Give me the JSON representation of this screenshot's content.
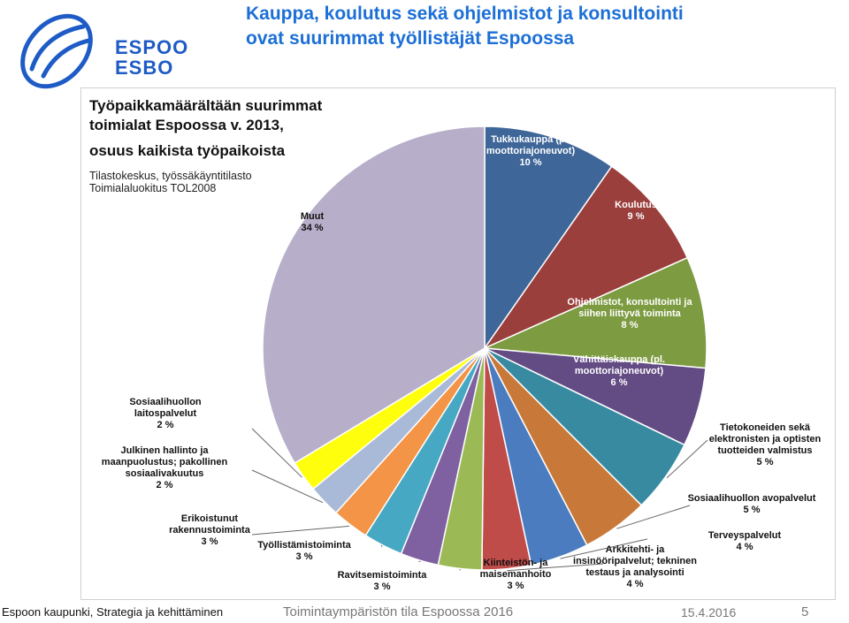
{
  "logo": {
    "line1": "ESPOO",
    "line2": "ESBO"
  },
  "title": {
    "line1": "Kauppa, koulutus sekä ohjelmistot ja konsultointi",
    "line2": "ovat suurimmat työllistäjät Espoossa"
  },
  "chart_heading": {
    "line1": "Työpaikkamäärältään suurimmat",
    "line2": "toimialat Espoossa v. 2013,",
    "line3": "osuus kaikista työpaikoista"
  },
  "chart_source": {
    "line1": "Tilastokeskus, työssäkäyntitilasto",
    "line2": "Toimialaluokitus  TOL2008"
  },
  "chart_data": {
    "type": "pie",
    "title": "Työpaikkamäärältään suurimmat toimialat Espoossa v. 2013, osuus kaikista työpaikoista",
    "unit": "%",
    "slices": [
      {
        "lines": [
          "Tukkukauppa (pl.",
          "moottoriajoneuvot)"
        ],
        "value_label": "10 %",
        "value": 9.8,
        "color": "#3f6698"
      },
      {
        "lines": [
          "Koulutus"
        ],
        "value_label": "9 %",
        "value": 8.7,
        "color": "#9b3f3d"
      },
      {
        "lines": [
          "Ohjelmistot, konsultointi ja",
          "siihen liittyvä toiminta"
        ],
        "value_label": "8 %",
        "value": 8.2,
        "color": "#7d9b41"
      },
      {
        "lines": [
          "Vähittäiskauppa (pl.",
          "moottoriajoneuvot)"
        ],
        "value_label": "6 %",
        "value": 5.8,
        "color": "#634b84"
      },
      {
        "lines": [
          "Tietokoneiden sekä",
          "elektronisten ja optisten",
          "tuotteiden valmistus"
        ],
        "value_label": "5 %",
        "value": 5.4,
        "color": "#378aa0"
      },
      {
        "lines": [
          "Sosiaalihuollon avopalvelut"
        ],
        "value_label": "5 %",
        "value": 4.9,
        "color": "#c8793a"
      },
      {
        "lines": [
          "Terveyspalvelut"
        ],
        "value_label": "4 %",
        "value": 4.3,
        "color": "#4b7cc0"
      },
      {
        "lines": [
          "Arkkitehti- ja",
          "insinööripalvelut; tekninen",
          "testaus ja analysointi"
        ],
        "value_label": "4 %",
        "value": 3.6,
        "color": "#c04c4a"
      },
      {
        "lines": [
          "Kiinteistön- ja",
          "maisemanhoito"
        ],
        "value_label": "3 %",
        "value": 3.2,
        "color": "#9bba56"
      },
      {
        "lines": [
          "Ravitsemistoiminta"
        ],
        "value_label": "3 %",
        "value": 2.8,
        "color": "#7f61a2"
      },
      {
        "lines": [
          "Työllistämistoiminta"
        ],
        "value_label": "3 %",
        "value": 2.9,
        "color": "#46a8c2"
      },
      {
        "lines": [
          "Erikoistunut",
          "rakennustoiminta"
        ],
        "value_label": "3 %",
        "value": 2.7,
        "color": "#f39447"
      },
      {
        "lines": [
          "Julkinen hallinto ja",
          "maanpuolustus; pakollinen",
          "sosiaalivakuutus"
        ],
        "value_label": "2 %",
        "value": 2.4,
        "color": "#a9b9d8"
      },
      {
        "lines": [
          "Sosiaalihuollon",
          "laitospalvelut"
        ],
        "value_label": "2 %",
        "value": 2.3,
        "color": "#ffff0d"
      },
      {
        "lines": [
          "Muut"
        ],
        "value_label": "34 %",
        "value": 34.0,
        "color": "#b7aec9"
      }
    ]
  },
  "footer": {
    "left": "Espoon kaupunki, Strategia ja kehittäminen",
    "center": "Toimintaympäristön tila Espoossa 2016",
    "date": "15.4.2016",
    "page": "5"
  }
}
